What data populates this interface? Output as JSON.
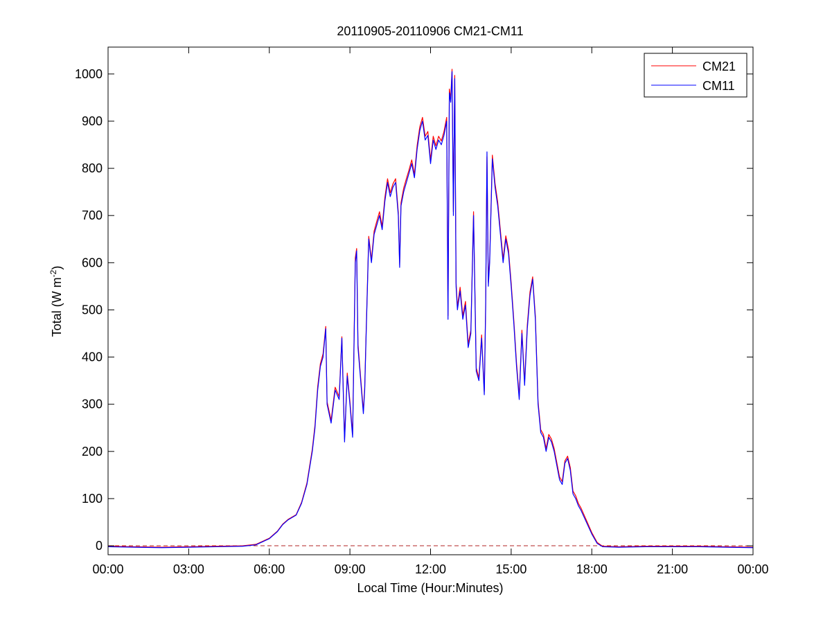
{
  "chart_data": {
    "type": "line",
    "title": "20110905-20110906 CM21-CM11",
    "xlabel": "Local Time (Hour:Minutes)",
    "ylabel": [
      "Total (W m",
      "-2",
      ")"
    ],
    "x": [
      0,
      1,
      2,
      3,
      4,
      5,
      5.5,
      6,
      6.3,
      6.5,
      6.7,
      7,
      7.2,
      7.4,
      7.6,
      7.7,
      7.8,
      7.9,
      8,
      8.1,
      8.15,
      8.3,
      8.45,
      8.6,
      8.7,
      8.8,
      8.9,
      9,
      9.1,
      9.2,
      9.25,
      9.3,
      9.4,
      9.5,
      9.55,
      9.6,
      9.7,
      9.8,
      9.9,
      10,
      10.1,
      10.2,
      10.3,
      10.4,
      10.5,
      10.6,
      10.7,
      10.8,
      10.85,
      10.9,
      11,
      11.1,
      11.2,
      11.3,
      11.4,
      11.5,
      11.6,
      11.7,
      11.8,
      11.9,
      12,
      12.1,
      12.2,
      12.3,
      12.4,
      12.5,
      12.6,
      12.65,
      12.7,
      12.75,
      12.8,
      12.85,
      12.9,
      12.95,
      13,
      13.1,
      13.2,
      13.3,
      13.4,
      13.5,
      13.6,
      13.7,
      13.8,
      13.9,
      14,
      14.05,
      14.1,
      14.15,
      14.2,
      14.3,
      14.4,
      14.5,
      14.6,
      14.7,
      14.8,
      14.9,
      15,
      15.1,
      15.2,
      15.3,
      15.4,
      15.5,
      15.6,
      15.7,
      15.8,
      15.9,
      16,
      16.1,
      16.2,
      16.3,
      16.4,
      16.5,
      16.6,
      16.7,
      16.8,
      16.9,
      17,
      17.1,
      17.2,
      17.3,
      17.4,
      17.5,
      17.6,
      17.8,
      18,
      18.2,
      18.4,
      19,
      20,
      21,
      22,
      23,
      24
    ],
    "series": [
      {
        "name": "CM21",
        "color": "#ff0000",
        "values": [
          -1,
          -2,
          -3,
          -2,
          -1,
          0,
          3,
          16,
          31,
          46,
          56,
          66,
          92,
          133,
          205,
          256,
          337,
          386,
          407,
          465,
          305,
          266,
          336,
          316,
          443,
          226,
          366,
          306,
          236,
          610,
          630,
          428,
          356,
          286,
          336,
          447,
          656,
          606,
          667,
          688,
          708,
          677,
          738,
          778,
          748,
          767,
          778,
          707,
          596,
          727,
          758,
          778,
          797,
          818,
          787,
          848,
          888,
          908,
          868,
          878,
          818,
          868,
          848,
          868,
          858,
          878,
          908,
          488,
          968,
          948,
          1010,
          708,
          997,
          558,
          507,
          548,
          488,
          518,
          428,
          457,
          708,
          377,
          356,
          447,
          327,
          507,
          825,
          558,
          608,
          828,
          768,
          728,
          668,
          608,
          657,
          628,
          557,
          477,
          387,
          317,
          457,
          347,
          468,
          538,
          570,
          487,
          306,
          246,
          236,
          206,
          236,
          226,
          206,
          176,
          146,
          136,
          180,
          190,
          166,
          116,
          106,
          90,
          80,
          54,
          28,
          7,
          -1,
          -2,
          -1,
          -1,
          -1,
          -2,
          -3
        ]
      },
      {
        "name": "CM11",
        "color": "#0000ff",
        "values": [
          -2,
          -3,
          -4,
          -3,
          -2,
          -1,
          2,
          15,
          30,
          45,
          55,
          65,
          90,
          130,
          200,
          250,
          330,
          380,
          400,
          460,
          300,
          260,
          330,
          310,
          440,
          220,
          360,
          300,
          230,
          600,
          625,
          420,
          350,
          280,
          330,
          440,
          650,
          600,
          660,
          680,
          700,
          670,
          730,
          770,
          740,
          760,
          770,
          700,
          590,
          720,
          750,
          770,
          790,
          810,
          780,
          840,
          880,
          900,
          860,
          870,
          810,
          860,
          840,
          860,
          850,
          870,
          900,
          480,
          960,
          940,
          1005,
          700,
          990,
          550,
          500,
          540,
          480,
          510,
          420,
          450,
          700,
          370,
          350,
          440,
          320,
          500,
          835,
          550,
          600,
          820,
          760,
          720,
          660,
          600,
          650,
          620,
          550,
          470,
          380,
          310,
          450,
          340,
          460,
          530,
          565,
          480,
          300,
          240,
          230,
          200,
          230,
          220,
          200,
          170,
          140,
          130,
          175,
          185,
          160,
          110,
          100,
          85,
          75,
          50,
          25,
          5,
          -2,
          -3,
          -2,
          -2,
          -2,
          -3,
          -4
        ]
      }
    ],
    "reference_line": {
      "value": 0,
      "color": "#b22222"
    },
    "xlim": [
      0,
      24
    ],
    "xticks": [
      {
        "value": 0,
        "label": "00:00"
      },
      {
        "value": 3,
        "label": "03:00"
      },
      {
        "value": 6,
        "label": "06:00"
      },
      {
        "value": 9,
        "label": "09:00"
      },
      {
        "value": 12,
        "label": "12:00"
      },
      {
        "value": 15,
        "label": "15:00"
      },
      {
        "value": 18,
        "label": "18:00"
      },
      {
        "value": 21,
        "label": "21:00"
      },
      {
        "value": 24,
        "label": "00:00"
      }
    ],
    "ylim": [
      -19,
      1057
    ],
    "yticks": [
      0,
      100,
      200,
      300,
      400,
      500,
      600,
      700,
      800,
      900,
      1000
    ],
    "grid": false,
    "legend": "northeast"
  }
}
